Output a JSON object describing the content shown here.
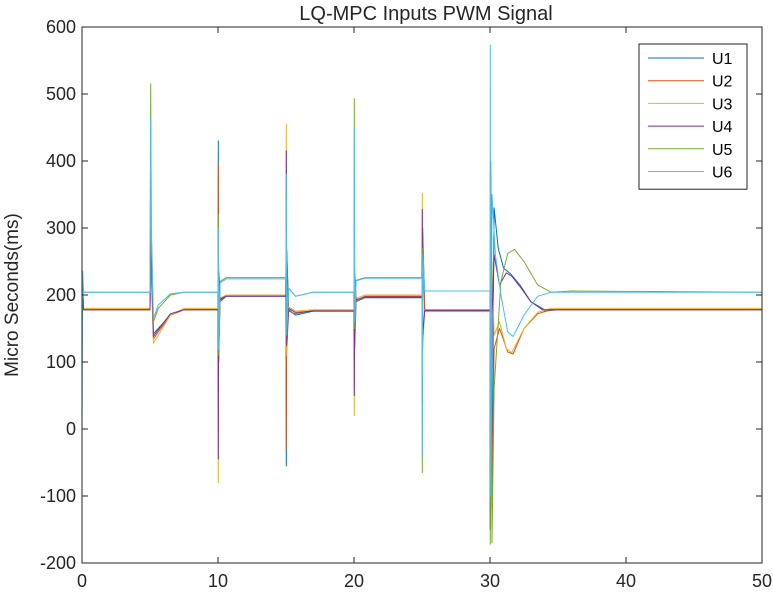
{
  "chart_data": {
    "type": "line",
    "title": "LQ-MPC Inputs PWM Signal",
    "xlabel": "",
    "ylabel": "Micro Seconds(ms)",
    "xlim": [
      0,
      50
    ],
    "ylim": [
      -200,
      600
    ],
    "xticks": [
      0,
      10,
      20,
      30,
      40,
      50
    ],
    "yticks": [
      -200,
      -100,
      0,
      100,
      200,
      300,
      400,
      500,
      600
    ],
    "grid": false,
    "legend_position": "top-right",
    "series": [
      {
        "name": "U1",
        "color": "#0072BD",
        "points": [
          [
            0,
            230
          ],
          [
            0.12,
            178
          ],
          [
            5,
            178
          ],
          [
            5.05,
            298
          ],
          [
            5.1,
            248
          ],
          [
            5.25,
            142
          ],
          [
            5.6,
            150
          ],
          [
            6.5,
            170
          ],
          [
            7.5,
            178
          ],
          [
            10,
            178
          ],
          [
            10.02,
            430
          ],
          [
            10.05,
            100
          ],
          [
            10.15,
            190
          ],
          [
            10.6,
            198
          ],
          [
            12,
            198
          ],
          [
            14.99,
            198
          ],
          [
            15.02,
            -55
          ],
          [
            15.05,
            268
          ],
          [
            15.2,
            178
          ],
          [
            15.7,
            170
          ],
          [
            17,
            176
          ],
          [
            20,
            176
          ],
          [
            20.02,
            338
          ],
          [
            20.05,
            120
          ],
          [
            20.15,
            190
          ],
          [
            20.8,
            196
          ],
          [
            25,
            196
          ],
          [
            25.02,
            40
          ],
          [
            25.05,
            300
          ],
          [
            25.2,
            178
          ],
          [
            30,
            178
          ],
          [
            30.02,
            -150
          ],
          [
            30.05,
            400
          ],
          [
            30.15,
            -110
          ],
          [
            30.3,
            330
          ],
          [
            30.6,
            270
          ],
          [
            31,
            240
          ],
          [
            31.5,
            232
          ],
          [
            32.2,
            215
          ],
          [
            33,
            190
          ],
          [
            34,
            176
          ],
          [
            35,
            178
          ],
          [
            50,
            178
          ]
        ]
      },
      {
        "name": "U2",
        "color": "#D95319",
        "points": [
          [
            0,
            236
          ],
          [
            0.12,
            178
          ],
          [
            5,
            178
          ],
          [
            5.05,
            280
          ],
          [
            5.1,
            240
          ],
          [
            5.25,
            134
          ],
          [
            5.6,
            145
          ],
          [
            6.5,
            170
          ],
          [
            7.5,
            178
          ],
          [
            10,
            178
          ],
          [
            10.02,
            395
          ],
          [
            10.05,
            110
          ],
          [
            10.15,
            192
          ],
          [
            10.6,
            200
          ],
          [
            12,
            200
          ],
          [
            14.99,
            200
          ],
          [
            15.02,
            -30
          ],
          [
            15.05,
            262
          ],
          [
            15.2,
            176
          ],
          [
            15.7,
            172
          ],
          [
            17,
            177
          ],
          [
            20,
            177
          ],
          [
            20.02,
            320
          ],
          [
            20.05,
            130
          ],
          [
            20.15,
            192
          ],
          [
            20.8,
            198
          ],
          [
            25,
            198
          ],
          [
            25.02,
            50
          ],
          [
            25.05,
            290
          ],
          [
            25.2,
            176
          ],
          [
            30,
            176
          ],
          [
            30.02,
            -140
          ],
          [
            30.05,
            380
          ],
          [
            30.15,
            -100
          ],
          [
            30.3,
            120
          ],
          [
            30.7,
            150
          ],
          [
            31.3,
            115
          ],
          [
            31.7,
            112
          ],
          [
            32.5,
            150
          ],
          [
            33.5,
            172
          ],
          [
            34.5,
            178
          ],
          [
            50,
            178
          ]
        ]
      },
      {
        "name": "U3",
        "color": "#EDB120",
        "points": [
          [
            0,
            224
          ],
          [
            0.12,
            180
          ],
          [
            5,
            180
          ],
          [
            5.05,
            265
          ],
          [
            5.1,
            230
          ],
          [
            5.25,
            128
          ],
          [
            5.6,
            140
          ],
          [
            6.5,
            170
          ],
          [
            7.5,
            180
          ],
          [
            10,
            180
          ],
          [
            10.02,
            -80
          ],
          [
            10.05,
            240
          ],
          [
            10.15,
            195
          ],
          [
            10.6,
            200
          ],
          [
            12,
            200
          ],
          [
            14.99,
            200
          ],
          [
            15.02,
            455
          ],
          [
            15.05,
            110
          ],
          [
            15.2,
            182
          ],
          [
            15.7,
            176
          ],
          [
            17,
            178
          ],
          [
            20,
            178
          ],
          [
            20.02,
            20
          ],
          [
            20.05,
            240
          ],
          [
            20.15,
            195
          ],
          [
            20.8,
            200
          ],
          [
            25,
            200
          ],
          [
            25.02,
            352
          ],
          [
            25.05,
            120
          ],
          [
            25.2,
            178
          ],
          [
            30,
            178
          ],
          [
            30.02,
            380
          ],
          [
            30.05,
            -120
          ],
          [
            30.15,
            250
          ],
          [
            30.3,
            140
          ],
          [
            30.7,
            160
          ],
          [
            31.2,
            120
          ],
          [
            31.6,
            114
          ],
          [
            32.5,
            150
          ],
          [
            33.5,
            174
          ],
          [
            34.5,
            180
          ],
          [
            50,
            180
          ]
        ]
      },
      {
        "name": "U4",
        "color": "#7E2F8E",
        "points": [
          [
            0,
            226
          ],
          [
            0.12,
            178
          ],
          [
            5,
            178
          ],
          [
            5.05,
            285
          ],
          [
            5.1,
            245
          ],
          [
            5.25,
            138
          ],
          [
            5.6,
            148
          ],
          [
            6.5,
            172
          ],
          [
            7.5,
            178
          ],
          [
            10,
            178
          ],
          [
            10.02,
            -45
          ],
          [
            10.05,
            235
          ],
          [
            10.15,
            194
          ],
          [
            10.6,
            198
          ],
          [
            12,
            198
          ],
          [
            14.99,
            198
          ],
          [
            15.02,
            415
          ],
          [
            15.05,
            125
          ],
          [
            15.2,
            180
          ],
          [
            15.7,
            174
          ],
          [
            17,
            176
          ],
          [
            20,
            176
          ],
          [
            20.02,
            50
          ],
          [
            20.05,
            230
          ],
          [
            20.15,
            193
          ],
          [
            20.8,
            197
          ],
          [
            25,
            197
          ],
          [
            25.02,
            328
          ],
          [
            25.05,
            140
          ],
          [
            25.2,
            177
          ],
          [
            30,
            177
          ],
          [
            30.02,
            -150
          ],
          [
            30.05,
            -80
          ],
          [
            30.15,
            170
          ],
          [
            30.3,
            260
          ],
          [
            30.7,
            215
          ],
          [
            31.2,
            233
          ],
          [
            31.6,
            228
          ],
          [
            32.3,
            210
          ],
          [
            33,
            190
          ],
          [
            34,
            178
          ],
          [
            50,
            178
          ]
        ]
      },
      {
        "name": "U5",
        "color": "#77AC30",
        "points": [
          [
            0,
            232
          ],
          [
            0.12,
            204
          ],
          [
            5,
            204
          ],
          [
            5.05,
            515
          ],
          [
            5.1,
            300
          ],
          [
            5.25,
            160
          ],
          [
            5.6,
            180
          ],
          [
            6.5,
            200
          ],
          [
            7.5,
            204
          ],
          [
            10,
            204
          ],
          [
            10.02,
            320
          ],
          [
            10.05,
            110
          ],
          [
            10.15,
            220
          ],
          [
            10.6,
            226
          ],
          [
            12,
            226
          ],
          [
            14.99,
            226
          ],
          [
            15.02,
            350
          ],
          [
            15.05,
            150
          ],
          [
            15.2,
            210
          ],
          [
            15.7,
            198
          ],
          [
            17,
            204
          ],
          [
            20,
            204
          ],
          [
            20.02,
            493
          ],
          [
            20.05,
            150
          ],
          [
            20.15,
            222
          ],
          [
            20.8,
            226
          ],
          [
            25,
            226
          ],
          [
            25.02,
            -65
          ],
          [
            25.05,
            270
          ],
          [
            25.2,
            206
          ],
          [
            30,
            206
          ],
          [
            30.02,
            -172
          ],
          [
            30.05,
            280
          ],
          [
            30.15,
            -170
          ],
          [
            30.3,
            60
          ],
          [
            30.8,
            220
          ],
          [
            31.3,
            262
          ],
          [
            31.8,
            268
          ],
          [
            32.5,
            250
          ],
          [
            33.5,
            215
          ],
          [
            34.5,
            204
          ],
          [
            36,
            206
          ],
          [
            50,
            204
          ]
        ]
      },
      {
        "name": "U6",
        "color": "#4DBEEE",
        "points": [
          [
            0,
            0
          ],
          [
            0.05,
            236
          ],
          [
            0.12,
            204
          ],
          [
            5,
            204
          ],
          [
            5.05,
            465
          ],
          [
            5.1,
            280
          ],
          [
            5.25,
            165
          ],
          [
            5.6,
            185
          ],
          [
            6.5,
            202
          ],
          [
            7.5,
            204
          ],
          [
            10,
            204
          ],
          [
            10.02,
            300
          ],
          [
            10.05,
            120
          ],
          [
            10.15,
            218
          ],
          [
            10.6,
            224
          ],
          [
            12,
            224
          ],
          [
            14.99,
            224
          ],
          [
            15.02,
            380
          ],
          [
            15.05,
            140
          ],
          [
            15.2,
            210
          ],
          [
            15.7,
            198
          ],
          [
            17,
            204
          ],
          [
            20,
            204
          ],
          [
            20.02,
            450
          ],
          [
            20.05,
            160
          ],
          [
            20.15,
            221
          ],
          [
            20.8,
            225
          ],
          [
            25,
            225
          ],
          [
            25.02,
            -40
          ],
          [
            25.05,
            260
          ],
          [
            25.2,
            206
          ],
          [
            30,
            206
          ],
          [
            30.02,
            573
          ],
          [
            30.05,
            -100
          ],
          [
            30.15,
            350
          ],
          [
            30.4,
            260
          ],
          [
            30.8,
            200
          ],
          [
            31.3,
            145
          ],
          [
            31.7,
            138
          ],
          [
            32.5,
            170
          ],
          [
            33.5,
            198
          ],
          [
            34.5,
            204
          ],
          [
            50,
            204
          ],
          [
            50,
            5
          ]
        ]
      }
    ]
  }
}
